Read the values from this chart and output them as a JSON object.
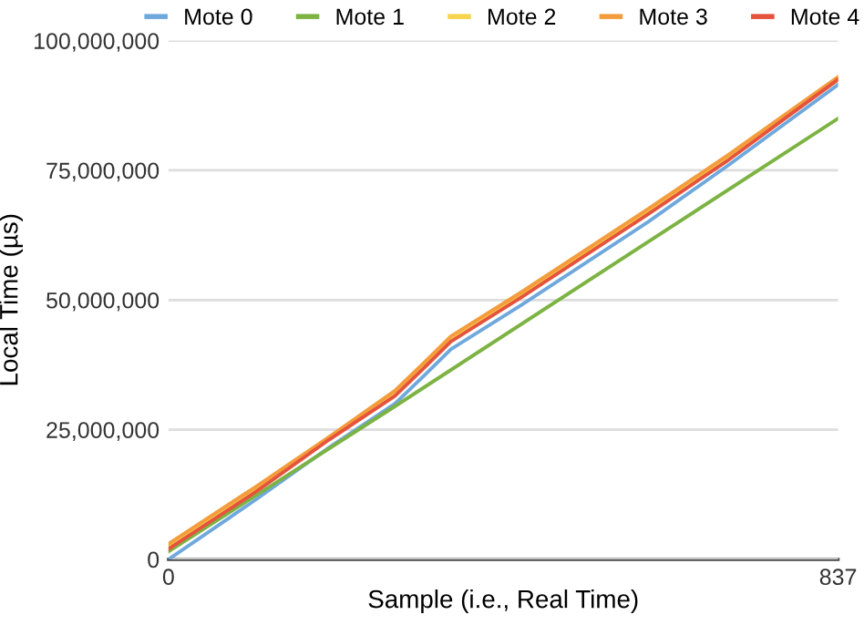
{
  "chart_data": {
    "type": "line",
    "xlabel": "Sample (i.e., Real Time)",
    "ylabel": "Local Time (µs)",
    "xlim": [
      0,
      837
    ],
    "xticks": [
      0,
      837
    ],
    "ylim": [
      0,
      100000000
    ],
    "yticks": [
      {
        "value": 0,
        "label": "0"
      },
      {
        "value": 25000000,
        "label": "25,000,000"
      },
      {
        "value": 50000000,
        "label": "50,000,000"
      },
      {
        "value": 75000000,
        "label": "75,000,000"
      },
      {
        "value": 100000000,
        "label": "100,000,000"
      }
    ],
    "grid": "y",
    "legend": "top",
    "marker": "none",
    "line_style": "solid",
    "series": [
      {
        "name": "Mote 0",
        "color": "#6fa8dc",
        "x": [
          0,
          109,
          200,
          283,
          320,
          353,
          441,
          599,
          700,
          837
        ],
        "values": [
          0,
          11500000,
          21500000,
          30000000,
          35500000,
          40500000,
          49000000,
          65000000,
          76000000,
          91500000
        ]
      },
      {
        "name": "Mote 1",
        "color": "#7cb342",
        "x": [
          0,
          283,
          837
        ],
        "values": [
          1500000,
          29500000,
          85000000
        ]
      },
      {
        "name": "Mote 2",
        "color": "#f6d44b",
        "x": [
          0,
          109,
          200,
          283,
          320,
          353,
          441,
          599,
          700,
          837
        ],
        "values": [
          2500000,
          13500000,
          23500000,
          32000000,
          37500000,
          42500000,
          51000000,
          67000000,
          77500000,
          92500000
        ]
      },
      {
        "name": "Mote 3",
        "color": "#f39c3c",
        "x": [
          0,
          109,
          200,
          283,
          320,
          353,
          441,
          599,
          700,
          837
        ],
        "values": [
          3000000,
          14000000,
          23500000,
          32500000,
          38000000,
          43000000,
          51500000,
          67500000,
          78000000,
          93000000
        ]
      },
      {
        "name": "Mote 4",
        "color": "#e5533d",
        "x": [
          0,
          109,
          200,
          283,
          320,
          353,
          441,
          599,
          700,
          837
        ],
        "values": [
          2000000,
          13000000,
          23000000,
          31500000,
          37000000,
          42000000,
          50500000,
          66500000,
          77000000,
          92500000
        ]
      }
    ]
  }
}
